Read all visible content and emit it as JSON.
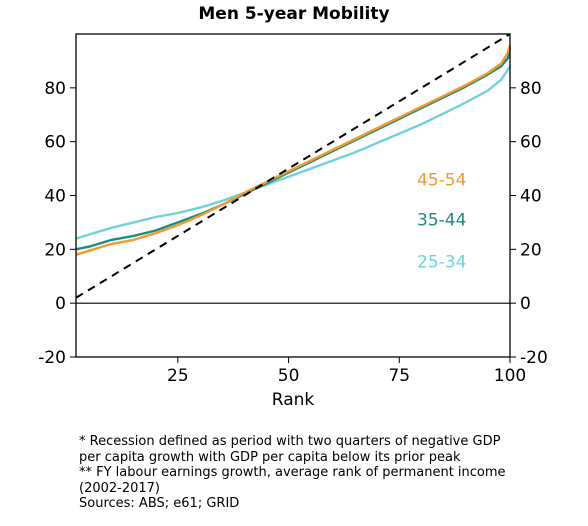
{
  "chart_data": {
    "type": "line",
    "title": "Men 5-year Mobility",
    "xlabel": "Rank",
    "ylabel": "",
    "xlim": [
      2,
      100
    ],
    "ylim": [
      -20,
      100
    ],
    "x_ticks": [
      25,
      50,
      75,
      100
    ],
    "y_ticks": [
      -20,
      0,
      20,
      40,
      60,
      80
    ],
    "y_ticks_right": [
      -20,
      0,
      20,
      40,
      60,
      80
    ],
    "grid": false,
    "legend": "inline labels to the right of the lines",
    "reference_line": {
      "style": "dashed",
      "color": "#000000",
      "x": [
        2,
        100
      ],
      "y": [
        2,
        100
      ]
    },
    "zero_line": 0,
    "series": [
      {
        "name": "25-34",
        "color": "#6dd3dc",
        "x": [
          1,
          5,
          10,
          15,
          20,
          25,
          30,
          35,
          40,
          45,
          50,
          55,
          60,
          65,
          70,
          75,
          80,
          85,
          90,
          95,
          98,
          100
        ],
        "y": [
          24,
          25.5,
          28,
          30,
          32,
          33.5,
          35.5,
          38,
          41,
          44,
          47,
          50,
          53,
          56,
          59.5,
          63,
          66.5,
          70.5,
          74.5,
          79,
          83,
          88
        ]
      },
      {
        "name": "35-44",
        "color": "#1e8a82",
        "x": [
          1,
          5,
          10,
          15,
          20,
          25,
          30,
          35,
          40,
          45,
          50,
          55,
          60,
          65,
          70,
          75,
          80,
          85,
          90,
          95,
          98,
          99.5,
          100
        ],
        "y": [
          20,
          21,
          23.5,
          25,
          27,
          30,
          33,
          36.5,
          40.5,
          44.5,
          48.5,
          52.5,
          56.5,
          60.5,
          64.5,
          68.5,
          72.5,
          76.5,
          80.5,
          85,
          88,
          91,
          95
        ]
      },
      {
        "name": "45-54",
        "color": "#f29a2e",
        "x": [
          1,
          5,
          10,
          15,
          20,
          25,
          30,
          35,
          40,
          45,
          50,
          55,
          60,
          65,
          70,
          75,
          80,
          85,
          90,
          95,
          98,
          99.5,
          100
        ],
        "y": [
          18,
          19.5,
          22,
          23.5,
          26,
          29,
          32.5,
          36.5,
          41,
          45,
          49,
          53,
          57,
          61,
          65,
          69,
          73,
          77,
          81,
          85.5,
          89,
          93,
          96
        ]
      }
    ],
    "series_labels": [
      {
        "text": "45-54",
        "color": "#f29a2e",
        "x": 79,
        "y": 46
      },
      {
        "text": "35-44",
        "color": "#1e8a82",
        "x": 79,
        "y": 31
      },
      {
        "text": "25-34",
        "color": "#6dd3dc",
        "x": 79,
        "y": 15.5
      }
    ]
  },
  "notes": [
    "* Recession defined as period with two quarters of negative GDP",
    "per capita growth with GDP per capita below its prior peak",
    "** FY labour earnings growth, average rank of permanent income",
    "(2002-2017)",
    "Sources: ABS; e61; GRID"
  ]
}
